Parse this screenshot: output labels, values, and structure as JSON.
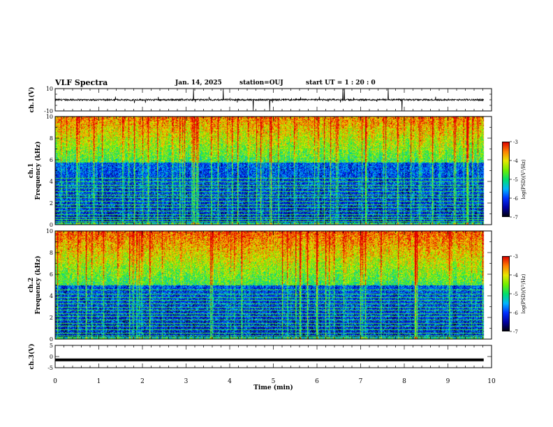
{
  "header": {
    "title": "VLF Spectra",
    "date": "Jan. 14, 2025",
    "station": "station=OUJ",
    "start_ut": "start  UT =  1 : 20 : 0"
  },
  "colors": {
    "trace": "#000000",
    "colormap": [
      "#000000",
      "#0000a0",
      "#0030ff",
      "#00b4ff",
      "#00e070",
      "#70f000",
      "#e8e800",
      "#ff8000",
      "#e00000",
      "#ffd0d0"
    ]
  },
  "chart_data": [
    {
      "type": "line",
      "name": "ch1-waveform",
      "ylabel": "ch.1(V)",
      "ylim": [
        -10,
        10
      ],
      "yticks": [
        "10",
        "-10"
      ],
      "xlim": [
        0,
        10
      ],
      "baseline": 0,
      "noise_amplitude": 1.2,
      "spike_amplitude": 10,
      "data_end": 9.82
    },
    {
      "type": "heatmap",
      "name": "ch1-spectrogram",
      "ylabel": "ch.1\nFrequency  (kHz)",
      "ylim": [
        0,
        10
      ],
      "yticks": [
        "0",
        "2",
        "4",
        "6",
        "8",
        "10"
      ],
      "xlim": [
        0,
        10
      ],
      "data_end": 9.82,
      "colorbar": {
        "label": "log(PSD)(V²/Hz)",
        "range": [
          -7,
          -3
        ],
        "ticks": [
          "-3",
          "-4",
          "-5",
          "-6",
          "-7"
        ]
      },
      "lines_khz": [
        0.3,
        0.5,
        0.7,
        1.0,
        1.3,
        1.6,
        1.9,
        2.2,
        2.5,
        2.8,
        3.1,
        3.4,
        3.7,
        4.0,
        4.3
      ]
    },
    {
      "type": "heatmap",
      "name": "ch2-spectrogram",
      "ylabel": "ch.2\nFrequency  (kHz)",
      "ylim": [
        0,
        10
      ],
      "yticks": [
        "0",
        "2",
        "4",
        "6",
        "8",
        "10"
      ],
      "xlim": [
        0,
        10
      ],
      "data_end": 9.82,
      "colorbar": {
        "label": "log(PSD)(V²/Hz)",
        "range": [
          -7,
          -3
        ],
        "ticks": [
          "-3",
          "-4",
          "-5",
          "-6",
          "-7"
        ]
      },
      "lines_khz": [
        0.3,
        0.6,
        0.9,
        1.2,
        1.5,
        1.8,
        2.1,
        2.4,
        2.7,
        3.0,
        3.3,
        3.6,
        3.9,
        4.2,
        4.6
      ]
    },
    {
      "type": "line",
      "name": "ch3-waveform",
      "ylabel": "ch.3(V)",
      "ylim": [
        -5,
        5
      ],
      "yticks": [
        "5",
        "0",
        "-5"
      ],
      "xlim": [
        0,
        10
      ],
      "baseline": -1.5,
      "noise_amplitude": 0.2,
      "data_end": 9.82
    }
  ],
  "xaxis": {
    "label": "Time  (min)",
    "ticks": [
      "0",
      "1",
      "2",
      "3",
      "4",
      "5",
      "6",
      "7",
      "8",
      "9",
      "10"
    ]
  }
}
